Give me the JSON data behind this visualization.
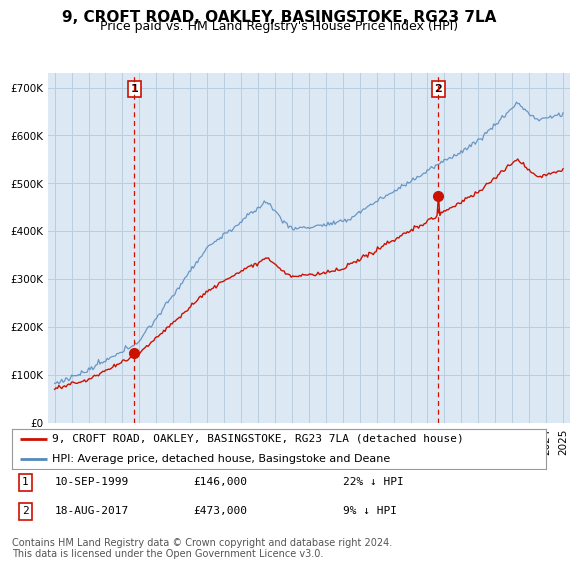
{
  "title": "9, CROFT ROAD, OAKLEY, BASINGSTOKE, RG23 7LA",
  "subtitle": "Price paid vs. HM Land Registry's House Price Index (HPI)",
  "ylim": [
    0,
    730000
  ],
  "yticks": [
    0,
    100000,
    200000,
    300000,
    400000,
    500000,
    600000,
    700000
  ],
  "ytick_labels": [
    "£0",
    "£100K",
    "£200K",
    "£300K",
    "£400K",
    "£500K",
    "£600K",
    "£700K"
  ],
  "background_color": "#ffffff",
  "plot_bg_color": "#dce9f5",
  "grid_color": "#b8cfe0",
  "hpi_color": "#5588bb",
  "price_color": "#cc1100",
  "vline_color": "#cc1100",
  "purchase1_year": 1999.71,
  "purchase1_price": 146000,
  "purchase2_year": 2017.63,
  "purchase2_price": 473000,
  "legend_property": "9, CROFT ROAD, OAKLEY, BASINGSTOKE, RG23 7LA (detached house)",
  "legend_hpi": "HPI: Average price, detached house, Basingstoke and Deane",
  "footnote": "Contains HM Land Registry data © Crown copyright and database right 2024.\nThis data is licensed under the Open Government Licence v3.0.",
  "title_fontsize": 11,
  "subtitle_fontsize": 9,
  "tick_fontsize": 7.5,
  "legend_fontsize": 8,
  "annotation_fontsize": 8,
  "footnote_fontsize": 7
}
